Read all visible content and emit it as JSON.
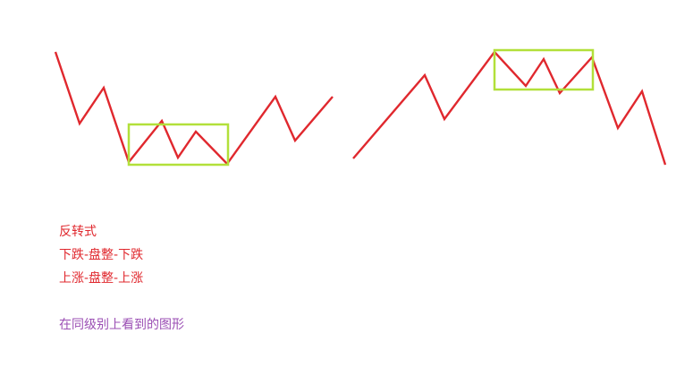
{
  "colors": {
    "line": "#e0282e",
    "box": "#b2e03a",
    "text_red": "#e0282e",
    "text_purple": "#9b4fb4",
    "background": "#ffffff"
  },
  "notes": {
    "title": "反转式",
    "line1": "下跌-盘整-下跌",
    "line2": "上涨-盘整-上涨",
    "caption": "在同级别上看到的图形"
  }
}
